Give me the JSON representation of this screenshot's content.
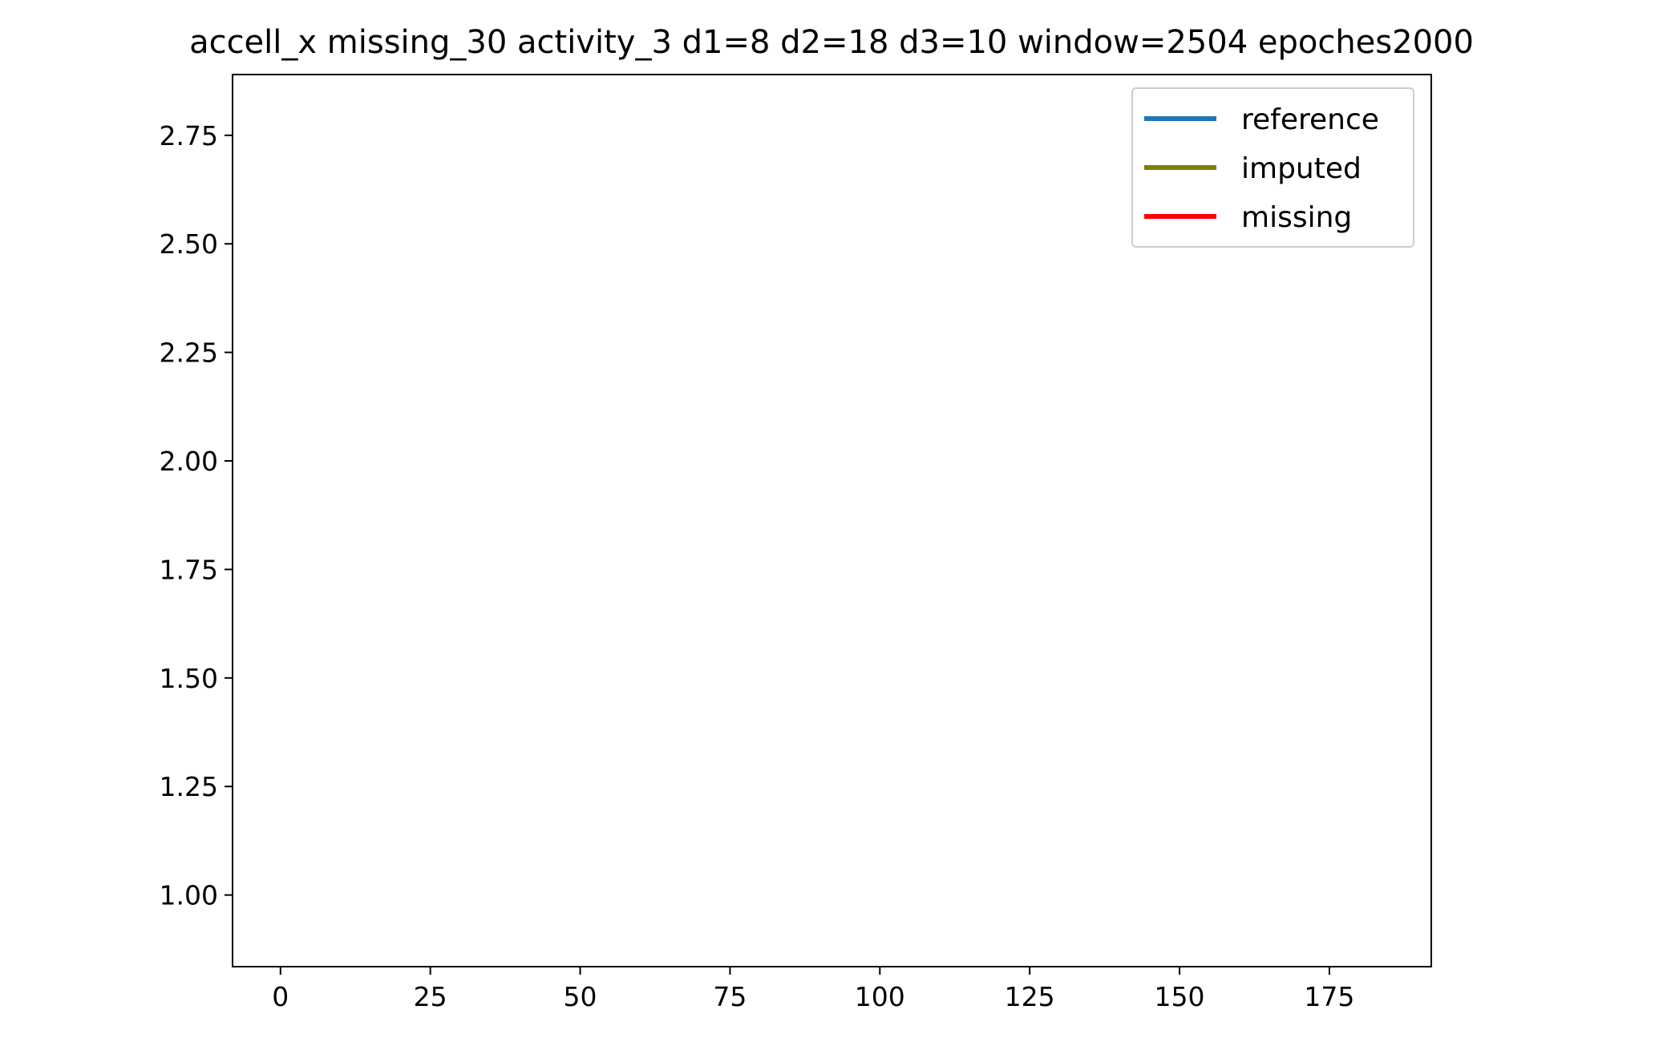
{
  "chart_data": {
    "type": "line",
    "title": "accell_x missing_30 activity_3 d1=8 d2=18 d3=10 window=2504 epoches2000",
    "xlabel": "",
    "ylabel": "",
    "xlim": [
      -8,
      192
    ],
    "ylim": [
      0.835,
      2.89
    ],
    "x_ticks": [
      0,
      25,
      50,
      75,
      100,
      125,
      150,
      175
    ],
    "x_tick_labels": [
      "0",
      "25",
      "50",
      "75",
      "100",
      "125",
      "150",
      "175"
    ],
    "y_ticks": [
      1.0,
      1.25,
      1.5,
      1.75,
      2.0,
      2.25,
      2.5,
      2.75
    ],
    "y_tick_labels": [
      "1.00",
      "1.25",
      "1.50",
      "1.75",
      "2.00",
      "2.25",
      "2.50",
      "2.75"
    ],
    "grid": false,
    "legend_position": "top-right",
    "series": [
      {
        "name": "reference",
        "color": "#1f77b4",
        "x": [],
        "y": []
      },
      {
        "name": "imputed",
        "color": "#808000",
        "x": [],
        "y": []
      },
      {
        "name": "missing",
        "color": "#ff0000",
        "x": [],
        "y": []
      }
    ]
  }
}
